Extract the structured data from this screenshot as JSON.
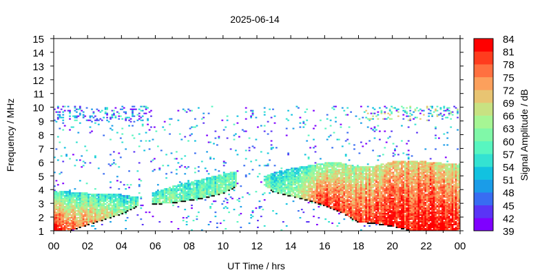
{
  "chart_data": {
    "type": "heatmap",
    "title": "2025-06-14",
    "xlabel": "UT Time / hrs",
    "ylabel": "Frequency / MHz",
    "xlim": [
      0,
      24
    ],
    "ylim": [
      1,
      15
    ],
    "x_tick_labels": [
      "00",
      "02",
      "04",
      "06",
      "08",
      "10",
      "12",
      "14",
      "16",
      "18",
      "20",
      "22",
      "00"
    ],
    "y_tick_labels": [
      "1",
      "2",
      "3",
      "4",
      "5",
      "6",
      "7",
      "8",
      "9",
      "10",
      "11",
      "12",
      "13",
      "14",
      "15"
    ],
    "grid": false,
    "colorbar": {
      "label": "Signal Amplitude / dB",
      "range": [
        39,
        84
      ],
      "tick_labels": [
        "39",
        "42",
        "45",
        "48",
        "51",
        "54",
        "57",
        "60",
        "63",
        "66",
        "69",
        "72",
        "75",
        "78",
        "81",
        "84"
      ],
      "colors": [
        "#7f00ff",
        "#5a34f6",
        "#386cf2",
        "#1a9ce8",
        "#12c2e0",
        "#34e2d2",
        "#58f6c0",
        "#80f8a8",
        "#a6f694",
        "#c8e282",
        "#e8c472",
        "#fca05c",
        "#ff7040",
        "#ff3c1e",
        "#ff0000"
      ]
    },
    "echo_profile": {
      "columns": [
        "hour",
        "fmin_MHz",
        "fmax_MHz",
        "dB_at_fmin",
        "dB_at_fmax"
      ],
      "rows": [
        [
          0.0,
          1.0,
          3.9,
          82,
          55
        ],
        [
          1.0,
          1.0,
          3.8,
          78,
          55
        ],
        [
          2.0,
          1.4,
          3.7,
          72,
          54
        ],
        [
          3.0,
          1.8,
          3.7,
          68,
          54
        ],
        [
          4.0,
          2.2,
          3.6,
          65,
          53
        ],
        [
          5.0,
          2.8,
          3.4,
          62,
          55
        ],
        [
          5.3,
          null,
          null,
          null,
          null
        ],
        [
          5.8,
          2.9,
          3.7,
          62,
          55
        ],
        [
          7.0,
          3.0,
          4.2,
          62,
          56
        ],
        [
          8.0,
          3.2,
          4.5,
          60,
          56
        ],
        [
          9.0,
          3.4,
          4.8,
          60,
          56
        ],
        [
          10.0,
          3.7,
          5.1,
          60,
          56
        ],
        [
          10.8,
          4.2,
          5.3,
          60,
          57
        ],
        [
          11.0,
          null,
          null,
          null,
          null
        ],
        [
          12.4,
          4.3,
          4.9,
          58,
          55
        ],
        [
          13.0,
          3.8,
          5.2,
          62,
          54
        ],
        [
          14.0,
          3.5,
          5.5,
          64,
          55
        ],
        [
          15.0,
          3.2,
          5.7,
          72,
          58
        ],
        [
          16.0,
          2.8,
          5.9,
          80,
          60
        ],
        [
          17.0,
          2.3,
          5.9,
          78,
          62
        ],
        [
          18.0,
          1.6,
          5.6,
          80,
          65
        ],
        [
          19.0,
          1.5,
          5.7,
          80,
          66
        ],
        [
          20.0,
          1.3,
          6.0,
          82,
          68
        ],
        [
          21.0,
          1.0,
          6.1,
          82,
          70
        ],
        [
          22.0,
          1.0,
          6.0,
          83,
          70
        ],
        [
          23.0,
          1.0,
          5.9,
          83,
          68
        ],
        [
          24.0,
          1.0,
          5.8,
          82,
          66
        ]
      ]
    },
    "noise_bands": [
      {
        "hours": [
          0,
          5.5
        ],
        "freq": [
          8.9,
          10.0
        ],
        "dB": [
          39,
          60
        ]
      },
      {
        "hours": [
          18.3,
          24
        ],
        "freq": [
          8.9,
          10.0
        ],
        "dB": [
          39,
          72
        ]
      }
    ],
    "background_noise_dB": [
      39,
      60
    ]
  }
}
